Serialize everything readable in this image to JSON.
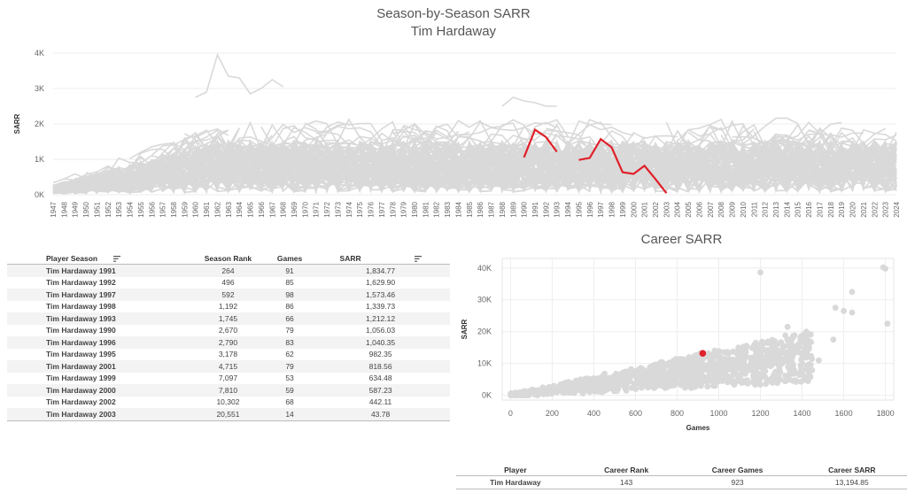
{
  "header": {
    "title": "Season-by-Season SARR",
    "subtitle": "Tim Hardaway"
  },
  "career_title": "Career SARR",
  "colors": {
    "highlight": "#e0202a",
    "background_lines": "#d9d9d9",
    "gridline": "#eeeeee"
  },
  "chart_data": [
    {
      "type": "line",
      "title": "Season-by-Season SARR",
      "subtitle": "Tim Hardaway",
      "ylabel": "SARR",
      "ylim": [
        0,
        4000
      ],
      "yticks": [
        "0K",
        "1K",
        "2K",
        "3K",
        "4K"
      ],
      "x_categories": [
        "1947",
        "1948",
        "1949",
        "1950",
        "1951",
        "1952",
        "1953",
        "1954",
        "1955",
        "1956",
        "1957",
        "1958",
        "1959",
        "1960",
        "1961",
        "1962",
        "1963",
        "1964",
        "1965",
        "1966",
        "1967",
        "1968",
        "1969",
        "1970",
        "1971",
        "1972",
        "1973",
        "1974",
        "1975",
        "1976",
        "1977",
        "1978",
        "1979",
        "1980",
        "1981",
        "1982",
        "1983",
        "1984",
        "1985",
        "1986",
        "1987",
        "1988",
        "1989",
        "1990",
        "1991",
        "1992",
        "1993",
        "1994",
        "1995",
        "1996",
        "1997",
        "1998",
        "1999",
        "2000",
        "2001",
        "2002",
        "2003",
        "2004",
        "2005",
        "2006",
        "2007",
        "2008",
        "2009",
        "2010",
        "2011",
        "2012",
        "2013",
        "2014",
        "2015",
        "2016",
        "2017",
        "2018",
        "2019",
        "2020",
        "2021",
        "2022",
        "2023",
        "2024"
      ],
      "highlight_series": {
        "name": "Tim Hardaway",
        "segments": [
          [
            [
              1990,
              1056.03
            ],
            [
              1991,
              1834.77
            ],
            [
              1992,
              1629.9
            ],
            [
              1993,
              1212.12
            ]
          ],
          [
            [
              1995,
              982.35
            ],
            [
              1996,
              1040.35
            ],
            [
              1997,
              1573.46
            ],
            [
              1998,
              1339.73
            ],
            [
              1999,
              634.48
            ],
            [
              2000,
              587.23
            ],
            [
              2001,
              818.56
            ],
            [
              2002,
              442.11
            ],
            [
              2003,
              43.78
            ]
          ]
        ]
      },
      "background_series_note": "all other players (gray)"
    },
    {
      "type": "scatter",
      "title": "Career SARR",
      "xlabel": "Games",
      "ylabel": "SARR",
      "xlim": [
        -40,
        1840
      ],
      "ylim": [
        -1500,
        43000
      ],
      "xticks": [
        0,
        200,
        400,
        600,
        800,
        1000,
        1200,
        1400,
        1600,
        1800
      ],
      "yticks": [
        "0K",
        "10K",
        "20K",
        "30K",
        "40K"
      ],
      "highlight_point": {
        "name": "Tim Hardaway",
        "x": 923,
        "y": 13194.85
      },
      "outlier_points": [
        [
          1790,
          40200
        ],
        [
          1800,
          39800
        ],
        [
          1810,
          22500
        ],
        [
          1200,
          38600
        ],
        [
          1640,
          32500
        ],
        [
          1560,
          27500
        ],
        [
          1600,
          26500
        ],
        [
          1640,
          26000
        ],
        [
          1550,
          17500
        ],
        [
          1420,
          20000
        ],
        [
          1330,
          21500
        ],
        [
          1360,
          13500
        ],
        [
          1480,
          11000
        ]
      ]
    }
  ],
  "season_table": {
    "columns": [
      "Player Season",
      "Season Rank",
      "Games",
      "SARR"
    ],
    "rows": [
      [
        "Tim Hardaway 1991",
        "264",
        "91",
        "1,834.77"
      ],
      [
        "Tim Hardaway 1992",
        "496",
        "85",
        "1,629.90"
      ],
      [
        "Tim Hardaway 1997",
        "592",
        "98",
        "1,573.46"
      ],
      [
        "Tim Hardaway 1998",
        "1,192",
        "86",
        "1,339.73"
      ],
      [
        "Tim Hardaway 1993",
        "1,745",
        "66",
        "1,212.12"
      ],
      [
        "Tim Hardaway 1990",
        "2,670",
        "79",
        "1,056.03"
      ],
      [
        "Tim Hardaway 1996",
        "2,790",
        "83",
        "1,040.35"
      ],
      [
        "Tim Hardaway 1995",
        "3,178",
        "62",
        "982.35"
      ],
      [
        "Tim Hardaway 2001",
        "4,715",
        "79",
        "818.56"
      ],
      [
        "Tim Hardaway 1999",
        "7,097",
        "53",
        "634.48"
      ],
      [
        "Tim Hardaway 2000",
        "7,810",
        "59",
        "587.23"
      ],
      [
        "Tim Hardaway 2002",
        "10,302",
        "68",
        "442.11"
      ],
      [
        "Tim Hardaway 2003",
        "20,551",
        "14",
        "43.78"
      ]
    ]
  },
  "career_table": {
    "columns": [
      "Player",
      "Career Rank",
      "Career Games",
      "Career SARR"
    ],
    "row": [
      "Tim Hardaway",
      "143",
      "923",
      "13,194.85"
    ]
  }
}
